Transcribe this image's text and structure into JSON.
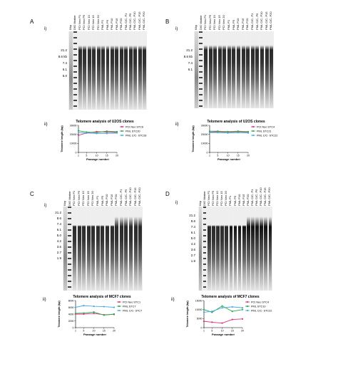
{
  "panels": [
    {
      "letter": "A",
      "sub_i": "i)",
      "sub_ii": "ii)",
      "lanes": [
        "Kbp",
        "DIG Marker",
        "PCI Neo P1",
        "PCI Neo P5",
        "PCI Neo 10",
        "PCI Neo 15",
        "PCI Neo 20",
        "PML P1",
        "PML P5",
        "PML P10",
        "PML P15",
        "PML P20",
        "PML C/C- P1",
        "PML C/C- P5",
        "PML C/C- P10",
        "PML C/C- P15",
        "PML C/C- P20"
      ],
      "markers": [
        "21.2",
        "8.6 kb",
        "7.4",
        "6.1",
        "5.0"
      ],
      "chart_data": {
        "type": "line",
        "title": "Telomere analysis of U2OS clones",
        "xlabel": "Passage number",
        "ylabel": "Telomere length (bp)",
        "x": [
          1,
          5,
          10,
          15,
          20
        ],
        "xticks": [
          "1",
          "5",
          "10",
          "15",
          "20"
        ],
        "ylim": [
          0,
          30000
        ],
        "yticks": [
          "0",
          "10000",
          "20000",
          "30000"
        ],
        "series": [
          {
            "name": "PCI Neo STC6",
            "color": "#e0307a",
            "values": [
              19000,
              21500,
              23000,
              22500,
              22000
            ]
          },
          {
            "name": "PML STC20",
            "color": "#2aa84a",
            "values": [
              24000,
              22500,
              22000,
              23500,
              23000
            ]
          },
          {
            "name": "PML C/C- STC28",
            "color": "#4aa8e8",
            "values": [
              22000,
              21500,
              21000,
              21000,
              21500
            ]
          }
        ]
      }
    },
    {
      "letter": "B",
      "sub_i": "i)",
      "sub_ii": "ii)",
      "lanes": [
        "Kbp",
        "DIG Marker",
        "PCI Neo P1",
        "PCI Neo P5",
        "PCI Neo 10",
        "PCI Neo 15",
        "PCI Neo 20",
        "PML P1",
        "PML P5",
        "PML P10",
        "PML P15",
        "PML P20",
        "PML C/C- P1",
        "PML C/C- P5",
        "PML C/C- P10",
        "PML C/C- P15",
        "PML C/C- P20"
      ],
      "markers": [
        "21.2",
        "8.6 kb",
        "7.4",
        "6.1"
      ],
      "chart_data": {
        "type": "line",
        "title": "Telomere analysis of U2OS clones",
        "xlabel": "Passage number",
        "ylabel": "Telomere length (bp)",
        "x": [
          1,
          5,
          10,
          15,
          20
        ],
        "xticks": [
          "1",
          "5",
          "10",
          "15",
          "20"
        ],
        "ylim": [
          0,
          30000
        ],
        "yticks": [
          "0",
          "10000",
          "20000",
          "30000"
        ],
        "series": [
          {
            "name": "PCI Neo STC4",
            "color": "#e0307a",
            "values": [
              22500,
              23000,
              22500,
              23000,
              22500
            ]
          },
          {
            "name": "PML STC21",
            "color": "#2aa84a",
            "values": [
              23500,
              23500,
              23000,
              23500,
              23000
            ]
          },
          {
            "name": "PML C/C- STC22",
            "color": "#4aa8e8",
            "values": [
              22000,
              22000,
              21500,
              22000,
              21500
            ]
          }
        ]
      }
    },
    {
      "letter": "C",
      "sub_i": "i)",
      "sub_ii": "ii)",
      "lanes": [
        "Kbp",
        "DIG Marker",
        "PCI Neo P1",
        "PCI Neo P5",
        "PCI Neo 10",
        "PCI Neo 15",
        "PCI Neo 20",
        "PML P1",
        "PML P5",
        "PML P10",
        "PML P15",
        "PML P20",
        "PML C/C- P1",
        "PML C/C- P5",
        "PML C/C- P10",
        "PML C/C- P15",
        "PML C/C- P20"
      ],
      "markers": [
        "21.2",
        "8.6",
        "7.4",
        "6.1",
        "5.0",
        "4.2",
        "3.6",
        "2.7",
        "1.9"
      ],
      "chart_data": {
        "type": "line",
        "title": "Telomere analysis of MCF7 clones",
        "xlabel": "Passage number",
        "ylabel": "Telomere length (bp)",
        "x": [
          1,
          5,
          10,
          15,
          20
        ],
        "xticks": [
          "1",
          "5",
          "10",
          "15",
          "20"
        ],
        "ylim": [
          0,
          8000
        ],
        "yticks": [
          "0",
          "2000",
          "4000",
          "6000",
          "8000"
        ],
        "series": [
          {
            "name": "PCI Neo STC1",
            "color": "#e0307a",
            "values": [
              4000,
              4000,
              4200,
              3800,
              3900
            ]
          },
          {
            "name": "PML STC7",
            "color": "#2aa84a",
            "values": [
              4200,
              4300,
              4600,
              3700,
              4000
            ]
          },
          {
            "name": "PML C/C- STC7",
            "color": "#4aa8e8",
            "values": [
              6000,
              6500,
              6300,
              6200,
              6000
            ]
          }
        ]
      }
    },
    {
      "letter": "D",
      "sub_i": "i)",
      "sub_ii": "ii)",
      "lanes": [
        "Kbp",
        "DIG Marker",
        "PCI Neo P1",
        "PCI Neo P5",
        "PCI Neo 10",
        "PCI Neo 15",
        "PCI Neo 20",
        "PML P1",
        "PML P5",
        "PML P10",
        "PML P15",
        "PML P20",
        "PML C/C- P1",
        "PML C/C- P5",
        "PML C/C- P10",
        "PML C/C- P15",
        "PML C/C- P20"
      ],
      "markers": [
        "21.2",
        "8.6",
        "7.4",
        "6.1",
        "5.0",
        "4.2",
        "3.6",
        "2.7",
        "1.9"
      ],
      "chart_data": {
        "type": "line",
        "title": "Telomere analysis of MCF7 clones",
        "xlabel": "Passage number",
        "ylabel": "Telomere length (bp)",
        "x": [
          1,
          5,
          10,
          15,
          20
        ],
        "xticks": [
          "1",
          "5",
          "10",
          "15",
          "20"
        ],
        "ylim": [
          0,
          15000
        ],
        "yticks": [
          "0",
          "5000",
          "10000",
          "15000"
        ],
        "series": [
          {
            "name": "PCI Neo STC4",
            "color": "#e0307a",
            "values": [
              3500,
              3000,
              2500,
              4500,
              4800
            ]
          },
          {
            "name": "PML STC10",
            "color": "#2aa84a",
            "values": [
              10000,
              8500,
              12000,
              9000,
              10000
            ]
          },
          {
            "name": "PML C/C- STC22",
            "color": "#4aa8e8",
            "values": [
              8500,
              9000,
              11000,
              11500,
              11000
            ]
          }
        ]
      }
    }
  ]
}
